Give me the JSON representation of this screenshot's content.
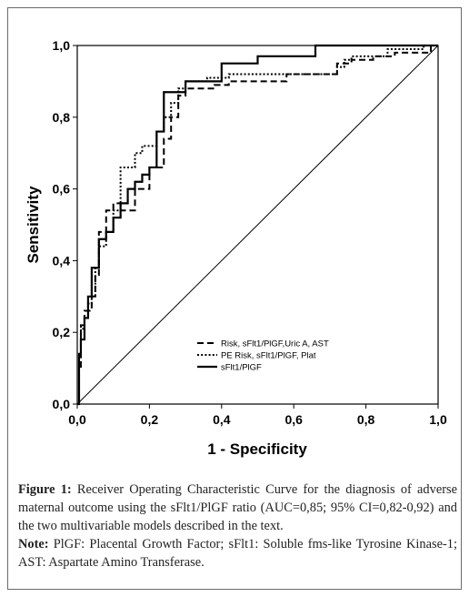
{
  "chart_data": {
    "type": "line",
    "title": "",
    "xlabel": "1 - Specificity",
    "ylabel": "Sensitivity",
    "xlim": [
      0,
      1
    ],
    "ylim": [
      0,
      1
    ],
    "xticks": [
      "0,0",
      "0,2",
      "0,4",
      "0,6",
      "0,8",
      "1,0"
    ],
    "yticks": [
      "0,0",
      "0,2",
      "0,4",
      "0,6",
      "0,8",
      "1,0"
    ],
    "grid": false,
    "legend_position": "bottom-center",
    "reference_line": "diagonal",
    "series": [
      {
        "name": "Risk, sFlt1/PlGF,Uric A, AST",
        "style": "dashed",
        "color": "#000000",
        "x": [
          0,
          0.005,
          0.005,
          0.01,
          0.01,
          0.02,
          0.02,
          0.04,
          0.04,
          0.05,
          0.05,
          0.06,
          0.06,
          0.08,
          0.08,
          0.1,
          0.1,
          0.12,
          0.12,
          0.16,
          0.16,
          0.2,
          0.2,
          0.24,
          0.24,
          0.26,
          0.26,
          0.28,
          0.28,
          0.3,
          0.3,
          0.38,
          0.38,
          0.42,
          0.42,
          0.58,
          0.58,
          0.72,
          0.72,
          0.76,
          0.76,
          0.82,
          0.82,
          0.88,
          0.88,
          0.98,
          0.98,
          1.0
        ],
        "y": [
          0,
          0,
          0.1,
          0.1,
          0.22,
          0.22,
          0.26,
          0.26,
          0.3,
          0.3,
          0.36,
          0.36,
          0.48,
          0.48,
          0.54,
          0.54,
          0.56,
          0.56,
          0.54,
          0.54,
          0.6,
          0.6,
          0.66,
          0.66,
          0.74,
          0.74,
          0.8,
          0.8,
          0.86,
          0.86,
          0.88,
          0.88,
          0.89,
          0.89,
          0.9,
          0.9,
          0.92,
          0.92,
          0.95,
          0.95,
          0.96,
          0.96,
          0.97,
          0.97,
          0.98,
          0.98,
          1.0,
          1.0
        ]
      },
      {
        "name": "PE Risk, sFlt1/PlGF, Plat",
        "style": "dotted",
        "color": "#000000",
        "x": [
          0,
          0.005,
          0.005,
          0.01,
          0.01,
          0.02,
          0.02,
          0.03,
          0.03,
          0.04,
          0.04,
          0.05,
          0.05,
          0.06,
          0.06,
          0.08,
          0.08,
          0.1,
          0.1,
          0.12,
          0.12,
          0.16,
          0.16,
          0.18,
          0.18,
          0.22,
          0.22,
          0.24,
          0.24,
          0.26,
          0.26,
          0.28,
          0.28,
          0.3,
          0.3,
          0.36,
          0.36,
          0.42,
          0.42,
          0.72,
          0.72,
          0.74,
          0.74,
          0.76,
          0.76,
          0.86,
          0.86,
          0.96,
          0.96,
          1.0
        ],
        "y": [
          0,
          0,
          0.13,
          0.13,
          0.21,
          0.21,
          0.24,
          0.24,
          0.28,
          0.28,
          0.3,
          0.3,
          0.38,
          0.38,
          0.44,
          0.44,
          0.48,
          0.48,
          0.54,
          0.54,
          0.66,
          0.66,
          0.7,
          0.7,
          0.72,
          0.72,
          0.76,
          0.76,
          0.8,
          0.8,
          0.84,
          0.84,
          0.88,
          0.88,
          0.9,
          0.9,
          0.91,
          0.91,
          0.92,
          0.92,
          0.94,
          0.94,
          0.96,
          0.96,
          0.97,
          0.97,
          0.99,
          0.99,
          1.0,
          1.0
        ]
      },
      {
        "name": "sFlt1/PlGF",
        "style": "solid",
        "color": "#000000",
        "x": [
          0,
          0.005,
          0.005,
          0.01,
          0.01,
          0.02,
          0.02,
          0.03,
          0.03,
          0.04,
          0.04,
          0.06,
          0.06,
          0.08,
          0.08,
          0.1,
          0.1,
          0.12,
          0.12,
          0.14,
          0.14,
          0.16,
          0.16,
          0.18,
          0.18,
          0.2,
          0.2,
          0.22,
          0.22,
          0.24,
          0.24,
          0.3,
          0.3,
          0.4,
          0.4,
          0.5,
          0.5,
          0.66,
          0.66,
          1.0
        ],
        "y": [
          0,
          0,
          0.14,
          0.14,
          0.18,
          0.18,
          0.24,
          0.24,
          0.3,
          0.3,
          0.38,
          0.38,
          0.46,
          0.46,
          0.48,
          0.48,
          0.52,
          0.52,
          0.56,
          0.56,
          0.6,
          0.6,
          0.62,
          0.62,
          0.64,
          0.64,
          0.66,
          0.66,
          0.76,
          0.76,
          0.87,
          0.87,
          0.9,
          0.9,
          0.95,
          0.95,
          0.97,
          0.97,
          1.0,
          1.0
        ]
      }
    ]
  },
  "caption": {
    "figure_label": "Figure 1:",
    "figure_text": " Receiver Operating Characteristic Curve for the diagnosis of adverse maternal outcome using the sFlt1/PlGF ratio (AUC=0,85; 95% CI=0,82-0,92) and the two multivariable models described in the text.",
    "note_label": "Note:",
    "note_text": " PlGF: Placental Growth Factor; sFlt1: Soluble fms-like Tyrosine Kinase-1; AST: Aspartate Amino Transferase."
  }
}
